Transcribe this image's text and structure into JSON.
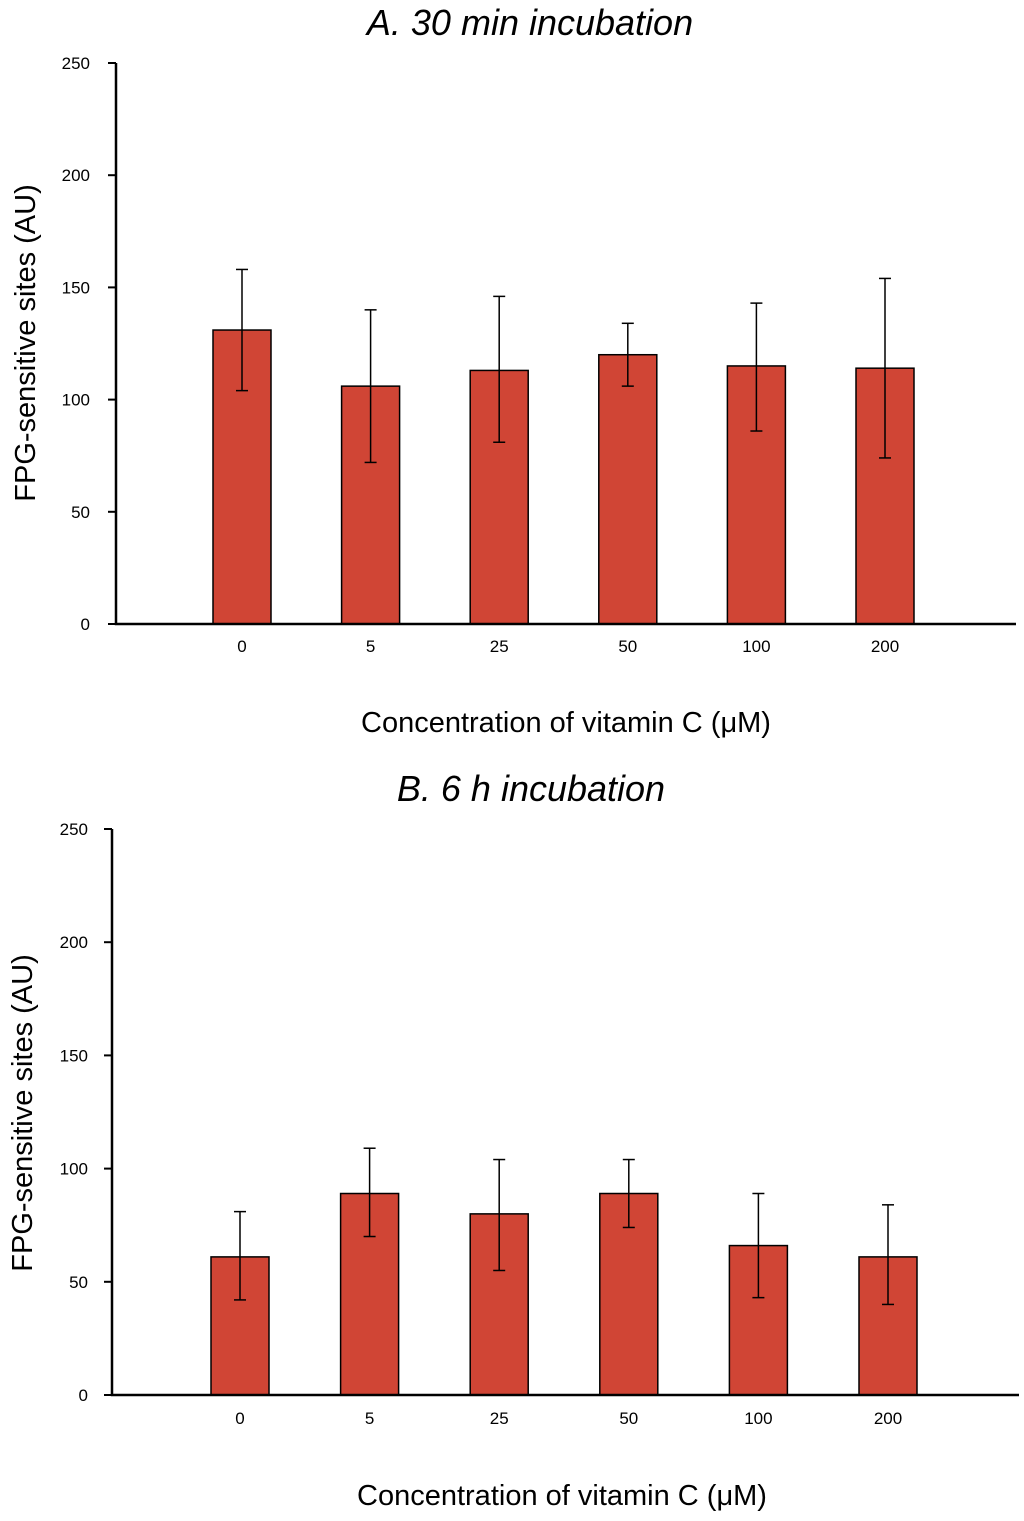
{
  "colors": {
    "bar": "#d04535",
    "axis": "#000000"
  },
  "chart_data": [
    {
      "type": "bar",
      "title": "A. 30 min incubation",
      "xlabel": "Concentration of vitamin C (μM)",
      "ylabel": "FPG-sensitive sites (AU)",
      "ylim": [
        0,
        250
      ],
      "yticks": [
        0,
        50,
        100,
        150,
        200,
        250
      ],
      "categories": [
        "0",
        "5",
        "25",
        "50",
        "100",
        "200"
      ],
      "series": [
        {
          "name": "FPG-sensitive sites",
          "values": [
            131,
            106,
            113,
            120,
            115,
            114
          ],
          "errors_upper": [
            158,
            140,
            146,
            134,
            143,
            154
          ],
          "errors_lower": [
            104,
            72,
            81,
            106,
            86,
            74
          ]
        }
      ]
    },
    {
      "type": "bar",
      "title": "B. 6 h incubation",
      "xlabel": "Concentration of vitamin C (μM)",
      "ylabel": "FPG-sensitive sites (AU)",
      "ylim": [
        0,
        250
      ],
      "yticks": [
        0,
        50,
        100,
        150,
        200,
        250
      ],
      "categories": [
        "0",
        "5",
        "25",
        "50",
        "100",
        "200"
      ],
      "series": [
        {
          "name": "FPG-sensitive sites",
          "values": [
            61,
            89,
            80,
            89,
            66,
            61
          ],
          "errors_upper": [
            81,
            109,
            104,
            104,
            89,
            84
          ],
          "errors_lower": [
            42,
            70,
            55,
            74,
            43,
            40
          ]
        }
      ]
    }
  ]
}
